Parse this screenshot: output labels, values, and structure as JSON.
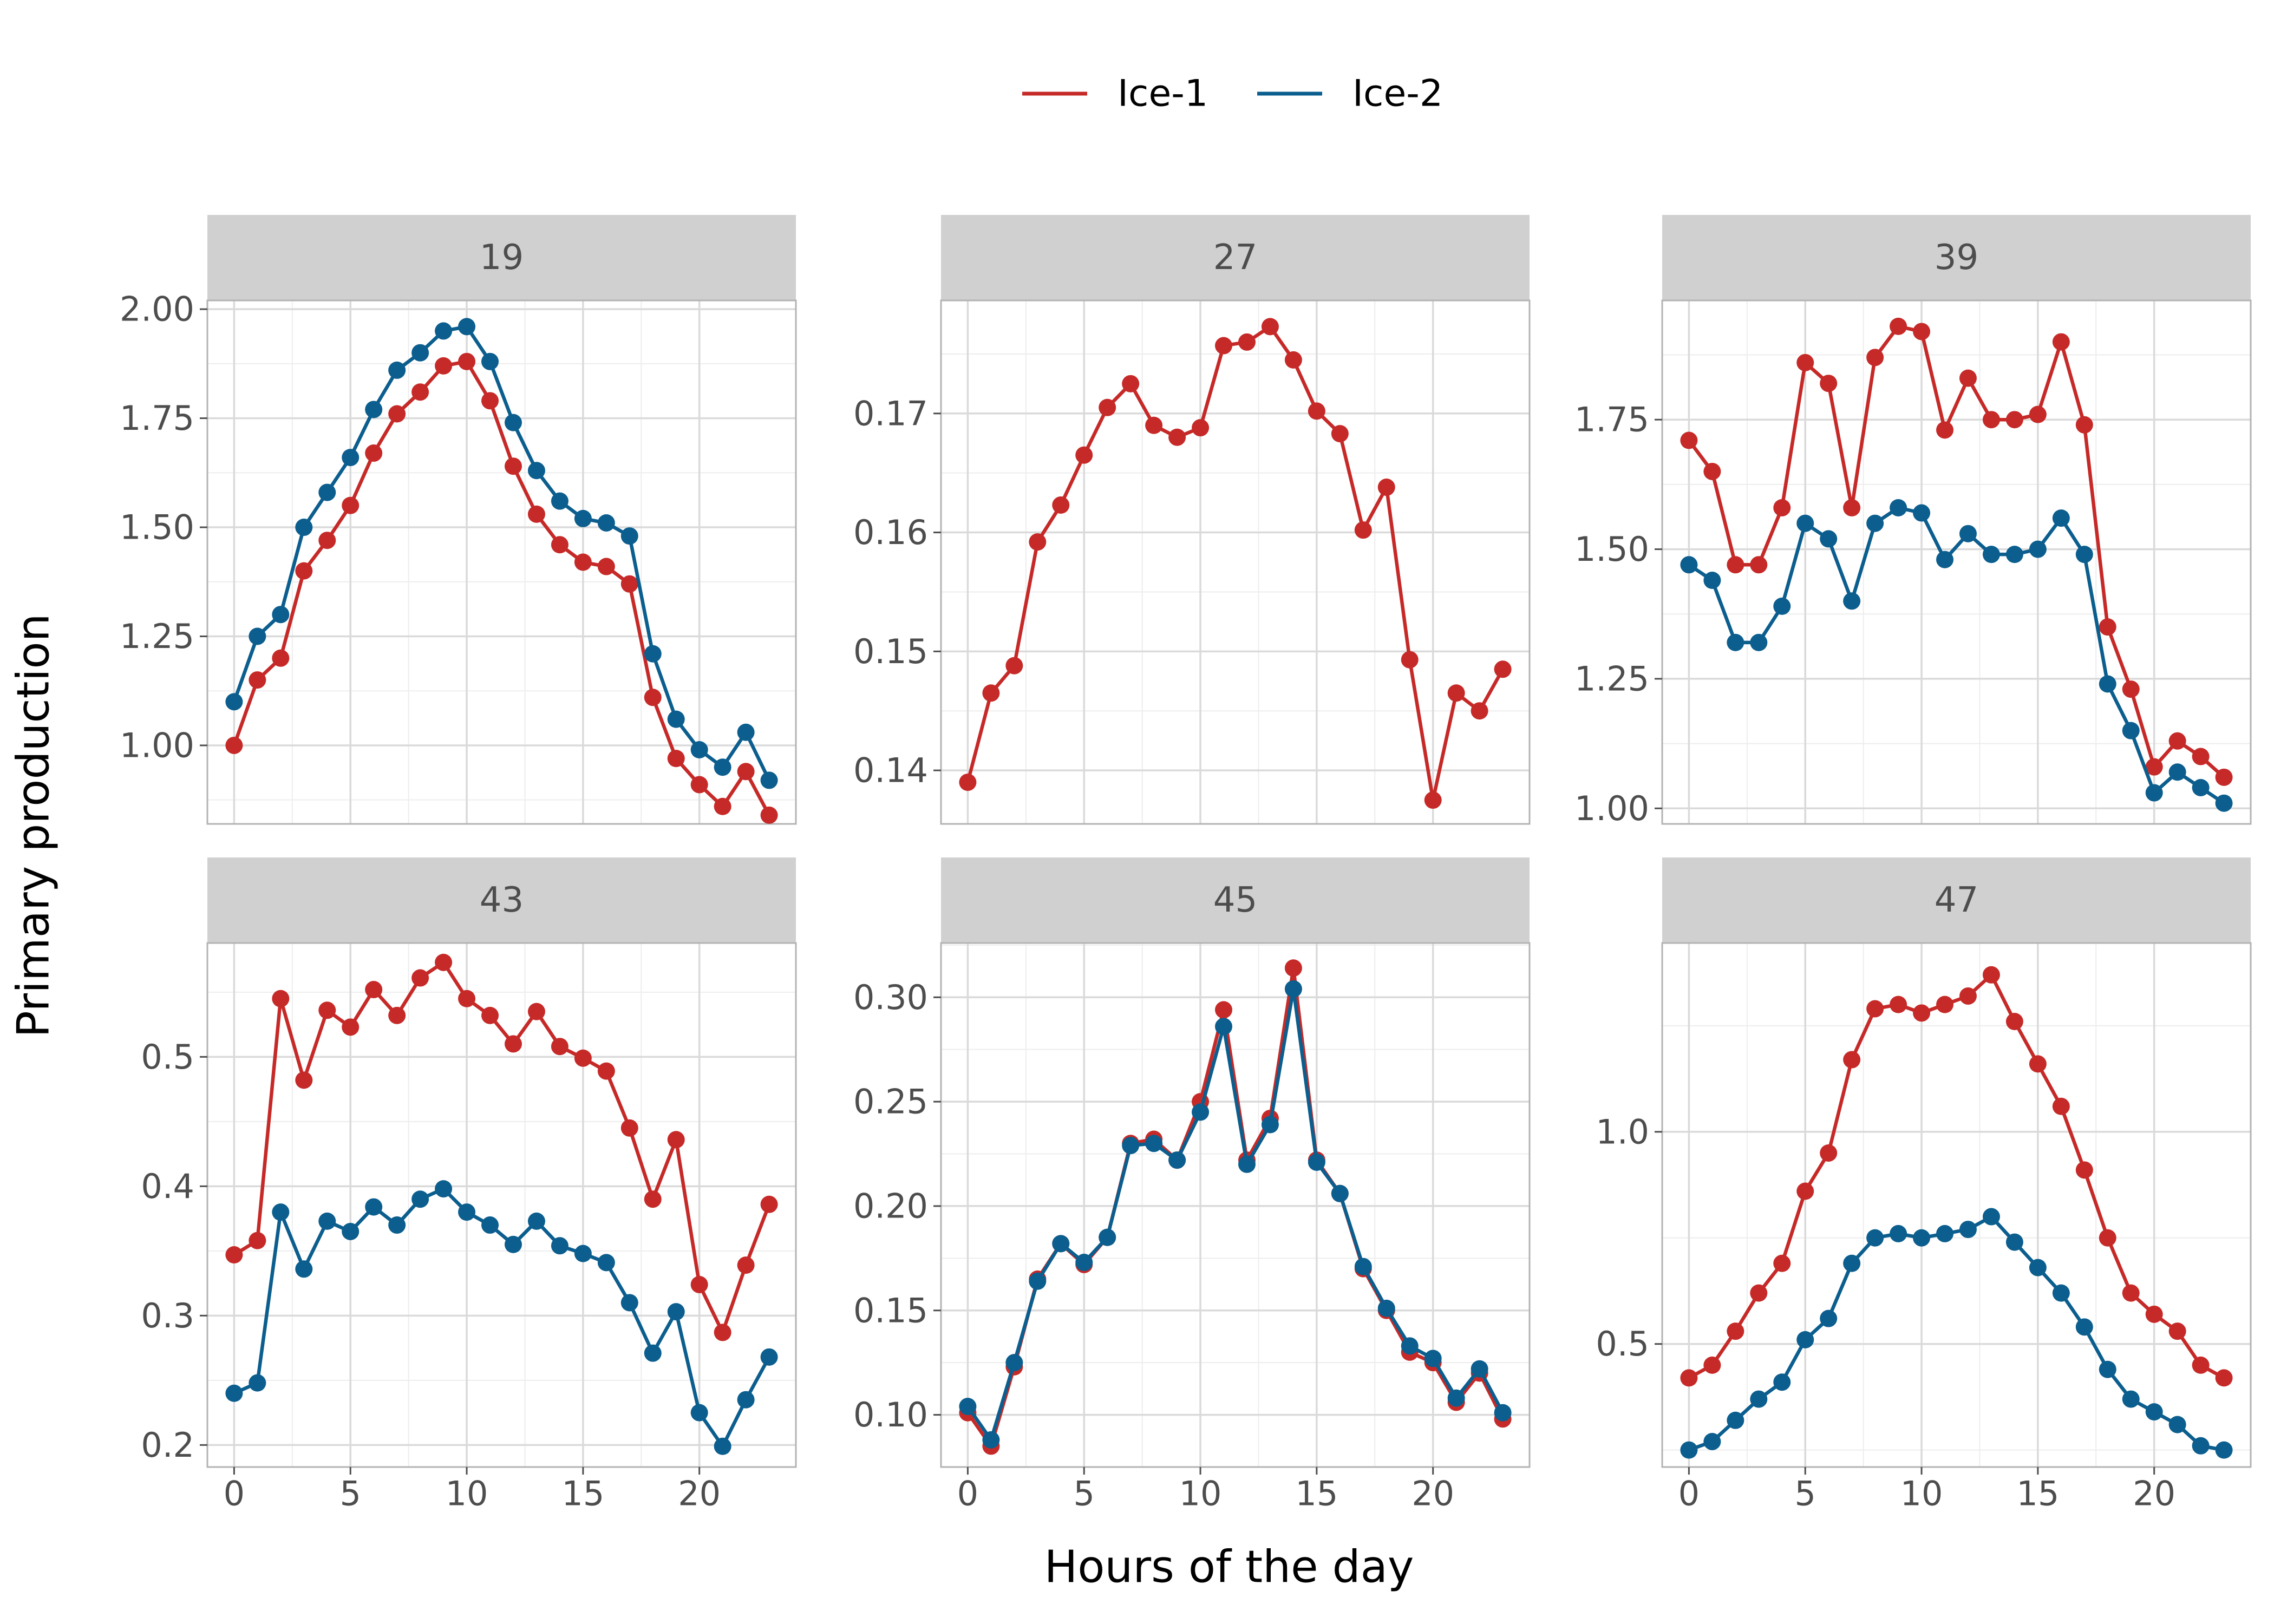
{
  "chart_data": {
    "type": "line",
    "title": "",
    "xlabel": "Hours of the day",
    "ylabel": "Primary production",
    "legend_position": "top",
    "grid": true,
    "x": [
      0,
      1,
      2,
      3,
      4,
      5,
      6,
      7,
      8,
      9,
      10,
      11,
      12,
      13,
      14,
      15,
      16,
      17,
      18,
      19,
      20,
      21,
      22,
      23
    ],
    "x_ticks": [
      0,
      5,
      10,
      15,
      20
    ],
    "x_tick_labels": [
      "0",
      "5",
      "10",
      "15",
      "20"
    ],
    "xlim": [
      -1.15,
      24.15
    ],
    "legend": [
      {
        "name": "Ice-1",
        "color": "#c62a28"
      },
      {
        "name": "Ice-2",
        "color": "#0b5e8e"
      }
    ],
    "panels": [
      {
        "label": "19",
        "ylim": [
          0.82,
          2.02
        ],
        "y_ticks": [
          1.0,
          1.25,
          1.5,
          1.75,
          2.0
        ],
        "y_tick_labels": [
          "1.00",
          "1.25",
          "1.50",
          "1.75",
          "2.00"
        ],
        "series": [
          {
            "name": "Ice-1",
            "color": "#c62a28",
            "values": [
              1.0,
              1.15,
              1.2,
              1.4,
              1.47,
              1.55,
              1.67,
              1.76,
              1.81,
              1.87,
              1.88,
              1.79,
              1.64,
              1.53,
              1.46,
              1.42,
              1.41,
              1.37,
              1.11,
              0.97,
              0.91,
              0.86,
              0.94,
              0.84
            ]
          },
          {
            "name": "Ice-2",
            "color": "#0b5e8e",
            "values": [
              1.1,
              1.25,
              1.3,
              1.5,
              1.58,
              1.66,
              1.77,
              1.86,
              1.9,
              1.95,
              1.96,
              1.88,
              1.74,
              1.63,
              1.56,
              1.52,
              1.51,
              1.48,
              1.21,
              1.06,
              0.99,
              0.95,
              1.03,
              0.92
            ]
          }
        ]
      },
      {
        "label": "27",
        "ylim": [
          0.1355,
          0.1795
        ],
        "y_ticks": [
          0.14,
          0.15,
          0.16,
          0.17
        ],
        "y_tick_labels": [
          "0.14",
          "0.15",
          "0.16",
          "0.17"
        ],
        "series": [
          {
            "name": "Ice-1",
            "color": "#c62a28",
            "values": [
              0.139,
              0.1465,
              0.1488,
              0.1592,
              0.1623,
              0.1665,
              0.1705,
              0.1725,
              0.169,
              0.168,
              0.1688,
              0.1757,
              0.176,
              0.1773,
              0.1745,
              0.1702,
              0.1683,
              0.1602,
              0.1638,
              0.1493,
              0.1375,
              0.1465,
              0.145,
              0.1485
            ]
          }
        ]
      },
      {
        "label": "39",
        "ylim": [
          0.97,
          1.98
        ],
        "y_ticks": [
          1.0,
          1.25,
          1.5,
          1.75
        ],
        "y_tick_labels": [
          "1.00",
          "1.25",
          "1.50",
          "1.75"
        ],
        "series": [
          {
            "name": "Ice-1",
            "color": "#c62a28",
            "values": [
              1.71,
              1.65,
              1.47,
              1.47,
              1.58,
              1.86,
              1.82,
              1.58,
              1.87,
              1.93,
              1.92,
              1.73,
              1.83,
              1.75,
              1.75,
              1.76,
              1.9,
              1.74,
              1.35,
              1.23,
              1.08,
              1.13,
              1.1,
              1.06
            ]
          },
          {
            "name": "Ice-2",
            "color": "#0b5e8e",
            "values": [
              1.47,
              1.44,
              1.32,
              1.32,
              1.39,
              1.55,
              1.52,
              1.4,
              1.55,
              1.58,
              1.57,
              1.48,
              1.53,
              1.49,
              1.49,
              1.5,
              1.56,
              1.49,
              1.24,
              1.15,
              1.03,
              1.07,
              1.04,
              1.01
            ]
          }
        ]
      },
      {
        "label": "43",
        "ylim": [
          0.183,
          0.588
        ],
        "y_ticks": [
          0.2,
          0.3,
          0.4,
          0.5
        ],
        "y_tick_labels": [
          "0.2",
          "0.3",
          "0.4",
          "0.5"
        ],
        "series": [
          {
            "name": "Ice-1",
            "color": "#c62a28",
            "values": [
              0.347,
              0.358,
              0.545,
              0.482,
              0.536,
              0.523,
              0.552,
              0.532,
              0.561,
              0.573,
              0.545,
              0.532,
              0.51,
              0.535,
              0.508,
              0.499,
              0.489,
              0.445,
              0.39,
              0.436,
              0.324,
              0.287,
              0.339,
              0.386
            ]
          },
          {
            "name": "Ice-2",
            "color": "#0b5e8e",
            "values": [
              0.24,
              0.248,
              0.38,
              0.336,
              0.373,
              0.365,
              0.384,
              0.37,
              0.39,
              0.398,
              0.38,
              0.37,
              0.355,
              0.373,
              0.354,
              0.348,
              0.341,
              0.31,
              0.271,
              0.303,
              0.225,
              0.199,
              0.235,
              0.268
            ]
          }
        ]
      },
      {
        "label": "45",
        "ylim": [
          0.075,
          0.326
        ],
        "y_ticks": [
          0.1,
          0.15,
          0.2,
          0.25,
          0.3
        ],
        "y_tick_labels": [
          "0.10",
          "0.15",
          "0.20",
          "0.25",
          "0.30"
        ],
        "series": [
          {
            "name": "Ice-1",
            "color": "#c62a28",
            "values": [
              0.101,
              0.085,
              0.123,
              0.165,
              0.182,
              0.172,
              0.185,
              0.23,
              0.232,
              0.222,
              0.25,
              0.294,
              0.222,
              0.242,
              0.314,
              0.222,
              0.206,
              0.17,
              0.15,
              0.13,
              0.125,
              0.106,
              0.12,
              0.098
            ]
          },
          {
            "name": "Ice-2",
            "color": "#0b5e8e",
            "values": [
              0.104,
              0.088,
              0.125,
              0.164,
              0.182,
              0.173,
              0.185,
              0.229,
              0.23,
              0.222,
              0.245,
              0.286,
              0.22,
              0.239,
              0.304,
              0.221,
              0.206,
              0.171,
              0.151,
              0.133,
              0.127,
              0.108,
              0.122,
              0.101
            ]
          }
        ]
      },
      {
        "label": "47",
        "ylim": [
          0.21,
          1.445
        ],
        "y_ticks": [
          0.5,
          1.0
        ],
        "y_tick_labels": [
          "0.5",
          "1.0"
        ],
        "series": [
          {
            "name": "Ice-1",
            "color": "#c62a28",
            "values": [
              0.42,
              0.45,
              0.53,
              0.62,
              0.69,
              0.86,
              0.95,
              1.17,
              1.29,
              1.3,
              1.28,
              1.3,
              1.32,
              1.37,
              1.26,
              1.16,
              1.06,
              0.91,
              0.75,
              0.62,
              0.57,
              0.53,
              0.45,
              0.42
            ]
          },
          {
            "name": "Ice-2",
            "color": "#0b5e8e",
            "values": [
              0.25,
              0.27,
              0.32,
              0.37,
              0.41,
              0.51,
              0.56,
              0.69,
              0.75,
              0.76,
              0.75,
              0.76,
              0.77,
              0.8,
              0.74,
              0.68,
              0.62,
              0.54,
              0.44,
              0.37,
              0.34,
              0.31,
              0.26,
              0.25
            ]
          }
        ]
      }
    ]
  }
}
